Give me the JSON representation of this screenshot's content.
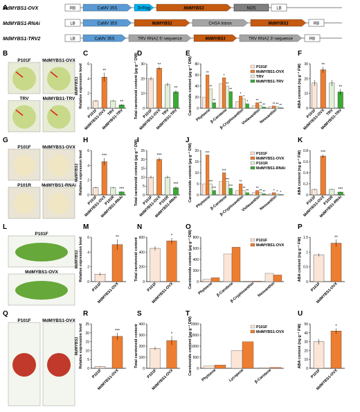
{
  "constructs": [
    {
      "label": "MdMYBS1-OVX",
      "segments": [
        {
          "text": "RB",
          "color": "#ffffff",
          "border": "#555555",
          "italic": false
        },
        {
          "text": "CaMV 35S",
          "color": "#5b9bd5",
          "italic": false
        },
        {
          "text": "3×Flag",
          "color": "#00b0f0",
          "italic": false
        },
        {
          "text": "MdMYBS1",
          "color": "#c55a11",
          "italic": true
        },
        {
          "text": "NOS",
          "color": "#7f7f7f",
          "italic": false
        },
        {
          "text": "LB",
          "color": "#ffffff",
          "border": "#555555",
          "italic": false
        }
      ]
    },
    {
      "label": "MdMYBS1-RNAi",
      "segments": [
        {
          "text": "LB",
          "color": "#ffffff",
          "border": "#555555",
          "italic": false
        },
        {
          "text": "CaMV 35S",
          "color": "#5b9bd5",
          "italic": false
        },
        {
          "text": "MdMYBS1",
          "color": "#c55a11",
          "italic": true
        },
        {
          "text": "CHSA Intron",
          "color": "#a5a5a5",
          "italic": false
        },
        {
          "text": "MdMYBS1",
          "color": "#c55a11",
          "italic": true
        },
        {
          "text": "RB",
          "color": "#ffffff",
          "border": "#555555",
          "italic": false
        }
      ]
    },
    {
      "label": "MdMYBS1-TRV2",
      "segments": [
        {
          "text": "LB",
          "color": "#ffffff",
          "border": "#555555",
          "italic": false
        },
        {
          "text": "CaMV 35S",
          "color": "#5b9bd5",
          "italic": false
        },
        {
          "text": "TRV RNA2 5'-sequence",
          "color": "#a5a5a5",
          "italic": false
        },
        {
          "text": "MdMYBS1",
          "color": "#c55a11",
          "italic": true
        },
        {
          "text": "TRV RNA2 3'-sequence",
          "color": "#a5a5a5",
          "italic": false
        },
        {
          "text": "RB",
          "color": "#ffffff",
          "border": "#555555",
          "italic": false
        }
      ]
    }
  ],
  "colors": {
    "P101F": "#fbe5d6",
    "MdMYBS1-OVX": "#ed7d31",
    "TRV": "#e2f0d9",
    "MdMYBS1-TRV": "#3aaa35",
    "P101R": "#e2f0d9",
    "MdMYBS1-RNAi": "#3aaa35"
  },
  "photos": {
    "B": [
      "P101F",
      "MdMYBS1-OVX",
      "TRV",
      "MdMYBS1-TRV"
    ],
    "G": [
      "P101F",
      "MdMYBS1-OVX",
      "P101R",
      "MdMYBS1-RNAi"
    ],
    "L": [
      "P101F",
      "MdMYBS1\n-OVX"
    ],
    "Q": [
      "P101F",
      "MdMYBS1-OVX"
    ]
  },
  "chart_data": [
    {
      "panel": "C",
      "type": "bar",
      "ylabel": "Relative expression level",
      "ytitle_gene": "MdMYBS1",
      "categories": [
        "P101F",
        "MdMYBS1-OVX",
        "TRV",
        "MdMYBS1-TRV"
      ],
      "values": [
        1,
        4.2,
        1,
        0.45
      ],
      "errors": [
        0.1,
        0.6,
        0.1,
        0.1
      ],
      "sig": [
        "",
        "**",
        "",
        "**"
      ],
      "yticks": [
        0,
        2,
        4,
        6
      ],
      "ylim": [
        0,
        6
      ]
    },
    {
      "panel": "D",
      "type": "bar",
      "ylabel": "Total carotenoid content (μg g⁻¹ DW)",
      "categories": [
        "P101F",
        "MdMYBS1-OVX",
        "TRV",
        "MdMYBS1-TRV"
      ],
      "values": [
        20,
        27,
        16,
        11
      ],
      "errors": [
        1.2,
        1,
        1.2,
        1.2
      ],
      "sig": [
        "",
        "**",
        "",
        "**"
      ],
      "yticks": [
        0,
        10,
        20,
        30
      ],
      "ylim": [
        0,
        30
      ]
    },
    {
      "panel": "E",
      "type": "grouped_bar",
      "ylabel": "Carotenoids content (μg g⁻¹ DW)",
      "categories": [
        "Phytoene",
        "β-Carotene",
        "β-Cryptoxanthin",
        "Violaxanthin",
        "Neoxanthin"
      ],
      "series": [
        {
          "name": "P101F",
          "values": [
            20,
            44,
            12,
            4,
            3
          ]
        },
        {
          "name": "MdMYBS1-OVX",
          "values": [
            60,
            55,
            22,
            10,
            4
          ]
        },
        {
          "name": "TRV",
          "values": [
            35,
            40,
            17,
            5,
            3
          ]
        },
        {
          "name": "MdMYBS1-TRV",
          "values": [
            10,
            30,
            8,
            2,
            1
          ]
        }
      ],
      "sig": [
        [
          "**",
          "**",
          "**",
          "**"
        ],
        [
          "*",
          "*",
          "**",
          "**"
        ],
        [
          "*",
          "*",
          "*",
          "*"
        ],
        [
          "**",
          "**",
          "**",
          "**"
        ],
        [
          "**",
          "**",
          "**",
          "**"
        ]
      ],
      "yticks": [
        0,
        20,
        40,
        60,
        80
      ],
      "ylim": [
        0,
        80
      ]
    },
    {
      "panel": "F",
      "type": "bar",
      "ylabel": "ABA content (ng g⁻¹ FW)",
      "categories": [
        "P101F",
        "MdMYBS1-OVX",
        "TRV",
        "MdMYBS1-TRV"
      ],
      "values": [
        17,
        26,
        17,
        11
      ],
      "errors": [
        2,
        2,
        2,
        2
      ],
      "sig": [
        "",
        "**",
        "",
        "**"
      ],
      "yticks": [
        0,
        10,
        20,
        30
      ],
      "ylim": [
        0,
        30
      ]
    },
    {
      "panel": "H",
      "type": "bar",
      "ylabel": "Relative expression level",
      "ytitle_gene": "MdMYBS1",
      "categories": [
        "P101F",
        "MdMYBS1-OVX",
        "P101R",
        "MdMYBS1-RNAi"
      ],
      "values": [
        1,
        4.5,
        1,
        0.4
      ],
      "errors": [
        0.1,
        0.5,
        0.1,
        0.1
      ],
      "sig": [
        "",
        "***",
        "",
        "***"
      ],
      "yticks": [
        0,
        2,
        4,
        6
      ],
      "ylim": [
        0,
        6
      ]
    },
    {
      "panel": "I",
      "type": "bar",
      "ylabel": "Total carotenoid content (μg g⁻¹ DW)",
      "categories": [
        "P101F",
        "MdMYBS1-OVX",
        "P101R",
        "MdMYBS1-RNAi"
      ],
      "values": [
        10,
        20,
        10,
        4
      ],
      "errors": [
        0.8,
        1,
        0.8,
        0.8
      ],
      "sig": [
        "",
        "***",
        "",
        "***"
      ],
      "yticks": [
        0,
        5,
        10,
        15,
        20,
        25
      ],
      "ylim": [
        0,
        25
      ]
    },
    {
      "panel": "J",
      "type": "grouped_bar",
      "ylabel": "Carotenoids content (μg g⁻¹ DW)",
      "categories": [
        "Phytoene",
        "β-Carotene",
        "β-Cryptoxanthin",
        "Violaxanthin",
        "Neoxanthin"
      ],
      "series": [
        {
          "name": "P101F",
          "values": [
            5,
            6,
            2,
            1,
            0.5
          ]
        },
        {
          "name": "MdMYBS1-OVX",
          "values": [
            18,
            10,
            5,
            2,
            1
          ]
        },
        {
          "name": "P101R",
          "values": [
            5,
            6,
            2,
            1,
            0.5
          ]
        },
        {
          "name": "MdMYBS1-RNAi",
          "values": [
            2,
            3,
            1,
            0.5,
            0.2
          ]
        }
      ],
      "sig": [
        [
          "***",
          "***",
          "***",
          "***"
        ],
        [
          "***",
          "***",
          "***",
          "***"
        ],
        [
          "**",
          "**",
          "**",
          "**"
        ],
        [
          "**",
          "**",
          "**",
          "**"
        ],
        [
          "*",
          "*",
          "*",
          "*"
        ]
      ],
      "yticks": [
        0,
        5,
        10,
        15,
        20
      ],
      "ylim": [
        0,
        20
      ]
    },
    {
      "panel": "K",
      "type": "bar",
      "ylabel": "ABA content (ng g⁻¹ FW)",
      "categories": [
        "P101F",
        "MdMYBS1-OVX",
        "P101R",
        "MdMYBS1-RNAi"
      ],
      "values": [
        0.1,
        0.7,
        0.1,
        0.05
      ],
      "errors": [
        0.01,
        0.03,
        0.01,
        0.01
      ],
      "sig": [
        "",
        "***",
        "",
        "***"
      ],
      "yticks": [
        0,
        0.2,
        0.4,
        0.6,
        0.8
      ],
      "ylim": [
        0,
        0.8
      ]
    },
    {
      "panel": "M",
      "type": "bar",
      "ylabel": "Relative expression level",
      "ytitle_gene": "MdMYBS1",
      "categories": [
        "P101F",
        "MdMYBS1-OVX"
      ],
      "values": [
        1,
        5
      ],
      "errors": [
        0.2,
        0.7
      ],
      "sig": [
        "",
        "**"
      ],
      "yticks": [
        0,
        2,
        4,
        6
      ],
      "ylim": [
        0,
        6
      ]
    },
    {
      "panel": "N",
      "type": "bar",
      "ylabel": "Total carotenoid content",
      "categories": [
        "P101F",
        "MdMYBS1-OVX"
      ],
      "values": [
        450,
        550
      ],
      "errors": [
        30,
        40
      ],
      "sig": [
        "",
        "*"
      ],
      "yticks": [
        0,
        200,
        400,
        600
      ],
      "ylim": [
        0,
        600
      ]
    },
    {
      "panel": "O",
      "type": "grouped_bar",
      "ylabel": "Carotenoids content (μg g⁻¹ DW)",
      "categories": [
        "Phytoene",
        "β-Carotene",
        "β-Cryptoxanthin",
        "Neoxanthin"
      ],
      "series": [
        {
          "name": "P101F",
          "values": [
            40,
            500,
            10,
            150
          ]
        },
        {
          "name": "MdMYBS1-OVX",
          "values": [
            70,
            620,
            10,
            120
          ]
        }
      ],
      "sig": [
        [
          "*"
        ],
        [
          "*"
        ],
        [
          ""
        ],
        [
          "*"
        ]
      ],
      "yticks": [
        0,
        200,
        400,
        600,
        800
      ],
      "ylim": [
        0,
        800
      ]
    },
    {
      "panel": "P",
      "type": "bar",
      "ylabel": "ABA content (ng g⁻¹ FW)",
      "categories": [
        "P101F",
        "MdMYBS1-OVX"
      ],
      "values": [
        0.9,
        1.3
      ],
      "errors": [
        0.05,
        0.12
      ],
      "sig": [
        "",
        "**"
      ],
      "yticks": [
        0,
        0.5,
        1,
        1.5
      ],
      "ylim": [
        0,
        1.5
      ]
    },
    {
      "panel": "R",
      "type": "bar",
      "ylabel": "Relative expression level",
      "ytitle_gene": "MdMYBS1",
      "categories": [
        "P101F",
        "MdMYBS1-OVX"
      ],
      "values": [
        1,
        18
      ],
      "errors": [
        0.2,
        2
      ],
      "sig": [
        "",
        "***"
      ],
      "yticks": [
        0,
        5,
        10,
        15,
        20,
        25
      ],
      "ylim": [
        0,
        25
      ]
    },
    {
      "panel": "S",
      "type": "bar",
      "ylabel": "Total carotenoid content",
      "categories": [
        "P101F",
        "MdMYBS1-OVX"
      ],
      "values": [
        180,
        250
      ],
      "errors": [
        15,
        40
      ],
      "sig": [
        "",
        "*"
      ],
      "yticks": [
        0,
        100,
        200,
        300,
        400
      ],
      "ylim": [
        0,
        400
      ]
    },
    {
      "panel": "T",
      "type": "grouped_bar",
      "ylabel": "Carotenoids content (μg g⁻¹ DW)",
      "categories": [
        "Phytoene",
        "Lycopene",
        "β-Carotene"
      ],
      "series": [
        {
          "name": "P101F",
          "values": [
            100,
            800,
            30
          ]
        },
        {
          "name": "MdMYBS1-OVX",
          "values": [
            150,
            1200,
            40
          ]
        }
      ],
      "sig": [
        [
          "*"
        ],
        [
          "*"
        ],
        [
          ""
        ]
      ],
      "yticks": [
        0,
        500,
        1000,
        1500,
        2000
      ],
      "ylim": [
        0,
        2000
      ]
    },
    {
      "panel": "U",
      "type": "bar",
      "ylabel": "ABA content (ng g⁻¹ FW)",
      "categories": [
        "P101F",
        "MdMYBS1-OVX"
      ],
      "values": [
        30,
        42
      ],
      "errors": [
        3,
        3
      ],
      "sig": [
        "",
        "*"
      ],
      "yticks": [
        0,
        10,
        20,
        30,
        40,
        50
      ],
      "ylim": [
        0,
        50
      ]
    }
  ]
}
